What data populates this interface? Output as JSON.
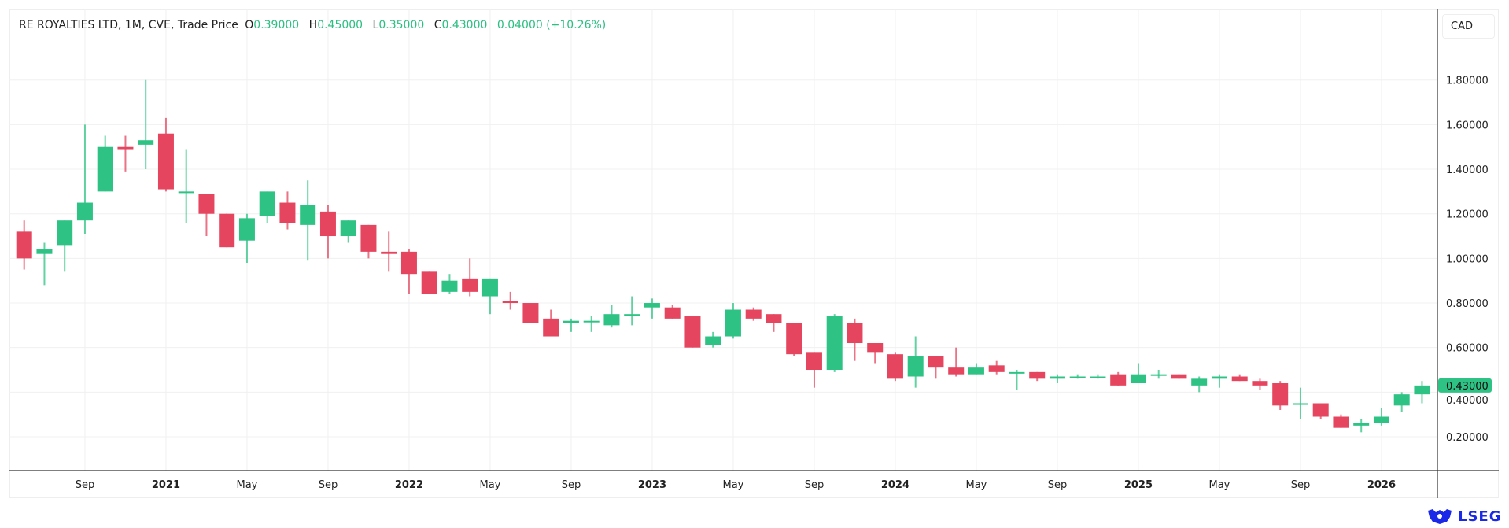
{
  "header": {
    "title": "RE ROYALTIES LTD, 1M, CVE, Trade Price",
    "o_label": "O",
    "o": "0.39000",
    "h_label": "H",
    "h": "0.45000",
    "l_label": "L",
    "l": "0.35000",
    "c_label": "C",
    "c": "0.43000",
    "change": "0.04000 (+10.26%)"
  },
  "currency": "CAD",
  "brand": "LSEG",
  "colors": {
    "up": "#2ec384",
    "down": "#e5455f",
    "grid": "#f0f0f0"
  },
  "chart_data": {
    "type": "candlestick",
    "title": "RE ROYALTIES LTD, 1M, CVE, Trade Price",
    "ylim": [
      0.05,
      1.95
    ],
    "y_ticks": [
      "0.20000",
      "0.40000",
      "0.60000",
      "0.80000",
      "1.00000",
      "1.20000",
      "1.40000",
      "1.60000",
      "1.80000"
    ],
    "y_tick_values": [
      0.2,
      0.4,
      0.6,
      0.8,
      1.0,
      1.2,
      1.4,
      1.6,
      1.8
    ],
    "x_ticks": [
      {
        "i": 3,
        "label": "Sep"
      },
      {
        "i": 7,
        "label": "2021",
        "bold": true
      },
      {
        "i": 11,
        "label": "May"
      },
      {
        "i": 15,
        "label": "Sep"
      },
      {
        "i": 19,
        "label": "2022",
        "bold": true
      },
      {
        "i": 23,
        "label": "May"
      },
      {
        "i": 27,
        "label": "Sep"
      },
      {
        "i": 31,
        "label": "2023",
        "bold": true
      },
      {
        "i": 35,
        "label": "May"
      },
      {
        "i": 39,
        "label": "Sep"
      },
      {
        "i": 43,
        "label": "2024",
        "bold": true
      },
      {
        "i": 47,
        "label": "May"
      },
      {
        "i": 51,
        "label": "Sep"
      },
      {
        "i": 55,
        "label": "2025",
        "bold": true
      },
      {
        "i": 59,
        "label": "May"
      },
      {
        "i": 63,
        "label": "Sep"
      },
      {
        "i": 67,
        "label": "2026",
        "bold": true
      }
    ],
    "last_price": "0.43000",
    "last_value": 0.43,
    "first_period": "2020-06",
    "ohlc": [
      [
        1.12,
        1.17,
        0.95,
        1.0
      ],
      [
        1.02,
        1.07,
        0.88,
        1.04
      ],
      [
        1.06,
        1.17,
        0.94,
        1.17
      ],
      [
        1.17,
        1.6,
        1.11,
        1.25
      ],
      [
        1.3,
        1.55,
        1.3,
        1.5
      ],
      [
        1.5,
        1.55,
        1.39,
        1.49
      ],
      [
        1.51,
        1.8,
        1.4,
        1.53
      ],
      [
        1.56,
        1.63,
        1.3,
        1.31
      ],
      [
        1.3,
        1.49,
        1.16,
        1.3
      ],
      [
        1.29,
        1.29,
        1.1,
        1.2
      ],
      [
        1.2,
        1.2,
        1.05,
        1.05
      ],
      [
        1.08,
        1.2,
        0.98,
        1.18
      ],
      [
        1.19,
        1.3,
        1.16,
        1.3
      ],
      [
        1.25,
        1.3,
        1.13,
        1.16
      ],
      [
        1.15,
        1.35,
        0.99,
        1.24
      ],
      [
        1.21,
        1.24,
        1.0,
        1.1
      ],
      [
        1.1,
        1.17,
        1.07,
        1.17
      ],
      [
        1.15,
        1.15,
        1.0,
        1.03
      ],
      [
        1.03,
        1.12,
        0.94,
        1.02
      ],
      [
        1.03,
        1.04,
        0.84,
        0.93
      ],
      [
        0.94,
        0.94,
        0.84,
        0.84
      ],
      [
        0.85,
        0.93,
        0.84,
        0.9
      ],
      [
        0.91,
        1.0,
        0.83,
        0.85
      ],
      [
        0.83,
        0.91,
        0.75,
        0.91
      ],
      [
        0.81,
        0.85,
        0.77,
        0.8
      ],
      [
        0.8,
        0.8,
        0.71,
        0.71
      ],
      [
        0.73,
        0.77,
        0.65,
        0.65
      ],
      [
        0.71,
        0.73,
        0.67,
        0.72
      ],
      [
        0.72,
        0.74,
        0.67,
        0.72
      ],
      [
        0.7,
        0.79,
        0.69,
        0.75
      ],
      [
        0.75,
        0.83,
        0.7,
        0.75
      ],
      [
        0.78,
        0.82,
        0.73,
        0.8
      ],
      [
        0.78,
        0.79,
        0.73,
        0.73
      ],
      [
        0.74,
        0.74,
        0.6,
        0.6
      ],
      [
        0.61,
        0.67,
        0.6,
        0.65
      ],
      [
        0.65,
        0.8,
        0.64,
        0.77
      ],
      [
        0.77,
        0.78,
        0.72,
        0.73
      ],
      [
        0.75,
        0.75,
        0.67,
        0.71
      ],
      [
        0.71,
        0.71,
        0.56,
        0.57
      ],
      [
        0.58,
        0.58,
        0.42,
        0.5
      ],
      [
        0.5,
        0.75,
        0.49,
        0.74
      ],
      [
        0.71,
        0.73,
        0.54,
        0.62
      ],
      [
        0.62,
        0.62,
        0.53,
        0.58
      ],
      [
        0.57,
        0.58,
        0.45,
        0.46
      ],
      [
        0.47,
        0.65,
        0.42,
        0.56
      ],
      [
        0.56,
        0.56,
        0.46,
        0.51
      ],
      [
        0.51,
        0.6,
        0.47,
        0.48
      ],
      [
        0.48,
        0.53,
        0.48,
        0.51
      ],
      [
        0.52,
        0.54,
        0.48,
        0.49
      ],
      [
        0.49,
        0.5,
        0.41,
        0.49
      ],
      [
        0.49,
        0.49,
        0.45,
        0.46
      ],
      [
        0.46,
        0.48,
        0.44,
        0.47
      ],
      [
        0.47,
        0.48,
        0.46,
        0.47
      ],
      [
        0.47,
        0.48,
        0.46,
        0.47
      ],
      [
        0.48,
        0.49,
        0.43,
        0.43
      ],
      [
        0.44,
        0.53,
        0.44,
        0.48
      ],
      [
        0.48,
        0.5,
        0.46,
        0.48
      ],
      [
        0.48,
        0.48,
        0.46,
        0.46
      ],
      [
        0.43,
        0.47,
        0.4,
        0.46
      ],
      [
        0.46,
        0.48,
        0.42,
        0.47
      ],
      [
        0.47,
        0.48,
        0.45,
        0.45
      ],
      [
        0.45,
        0.46,
        0.41,
        0.43
      ],
      [
        0.44,
        0.45,
        0.32,
        0.34
      ],
      [
        0.35,
        0.42,
        0.28,
        0.35
      ],
      [
        0.35,
        0.35,
        0.28,
        0.29
      ],
      [
        0.29,
        0.3,
        0.24,
        0.24
      ],
      [
        0.25,
        0.28,
        0.22,
        0.26
      ],
      [
        0.26,
        0.33,
        0.25,
        0.29
      ],
      [
        0.34,
        0.4,
        0.31,
        0.39
      ],
      [
        0.39,
        0.45,
        0.35,
        0.43
      ]
    ]
  }
}
